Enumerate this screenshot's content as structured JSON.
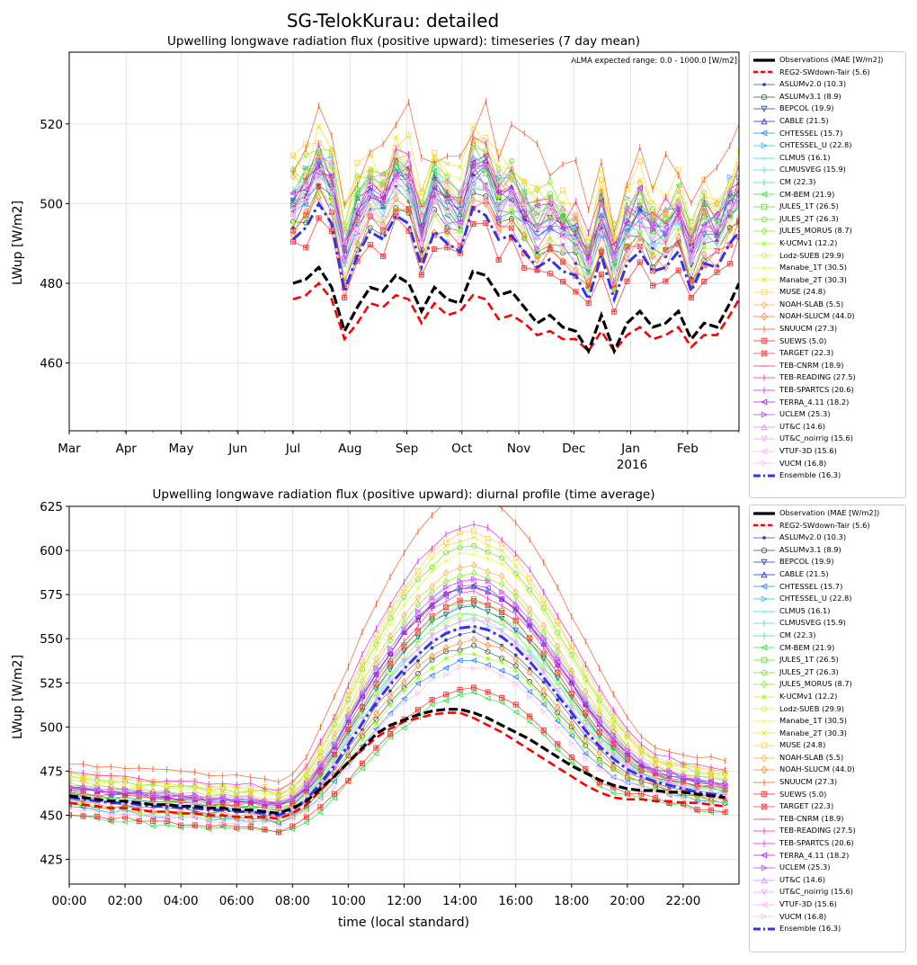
{
  "figure": {
    "title": "SG-TelokKurau: detailed"
  },
  "models": [
    {
      "name": "REG2-SWdown-Tair",
      "mae": 5.6,
      "color": "#ff0000",
      "marker": "",
      "dash": "dashed"
    },
    {
      "name": "ASLUMv2.0",
      "mae": 10.3,
      "color": "#2f4f8f",
      "marker": "dot"
    },
    {
      "name": "ASLUMv3.1",
      "mae": 8.9,
      "color": "#2e5a2e",
      "marker": "circle"
    },
    {
      "name": "BEPCOL",
      "mae": 19.9,
      "color": "#1f3f7f",
      "marker": "tri-down"
    },
    {
      "name": "CABLE",
      "mae": 21.5,
      "color": "#1f1fdf",
      "marker": "tri-up"
    },
    {
      "name": "CHTESSEL",
      "mae": 15.7,
      "color": "#1f7fff",
      "marker": "tri-left"
    },
    {
      "name": "CHTESSEL_U",
      "mae": 22.8,
      "color": "#1fbfff",
      "marker": "tri-right"
    },
    {
      "name": "CLMU5",
      "mae": 16.1,
      "color": "#1fdfdf",
      "marker": "hline"
    },
    {
      "name": "CLMUSVEG",
      "mae": 15.9,
      "color": "#3fdfbf",
      "marker": "vline"
    },
    {
      "name": "CM",
      "mae": 22.3,
      "color": "#3fdf7f",
      "marker": "vline"
    },
    {
      "name": "CM-BEM",
      "mae": 21.9,
      "color": "#2fdf3f",
      "marker": "tri-left"
    },
    {
      "name": "JULES_1T",
      "mae": 26.5,
      "color": "#4fdf1f",
      "marker": "square"
    },
    {
      "name": "JULES_2T",
      "mae": 26.3,
      "color": "#6fdf1f",
      "marker": "circle"
    },
    {
      "name": "JULES_MORUS",
      "mae": 8.7,
      "color": "#7fef1f",
      "marker": "diamond"
    },
    {
      "name": "K-UCMv1",
      "mae": 12.2,
      "color": "#9fff1f",
      "marker": "star"
    },
    {
      "name": "Lodz-SUEB",
      "mae": 29.9,
      "color": "#bfff3f",
      "marker": "circle"
    },
    {
      "name": "Manabe_1T",
      "mae": 30.5,
      "color": "#dfff1f",
      "marker": "plus"
    },
    {
      "name": "Manabe_2T",
      "mae": 30.3,
      "color": "#efdf1f",
      "marker": "x"
    },
    {
      "name": "MUSE",
      "mae": 24.8,
      "color": "#ffcf3f",
      "marker": "square"
    },
    {
      "name": "NOAH-SLAB",
      "mae": 5.5,
      "color": "#ffaf3f",
      "marker": "diamond"
    },
    {
      "name": "NOAH-SLUCM",
      "mae": 44.0,
      "color": "#ff7f1f",
      "marker": "diamond"
    },
    {
      "name": "SNUUCM",
      "mae": 27.3,
      "color": "#ff4f1f",
      "marker": "vline"
    },
    {
      "name": "SUEWS",
      "mae": 5.0,
      "color": "#ff1f1f",
      "marker": "plus-box"
    },
    {
      "name": "TARGET",
      "mae": 22.3,
      "color": "#ff3f3f",
      "marker": "x-box"
    },
    {
      "name": "TEB-CNRM",
      "mae": 18.9,
      "color": "#ff1f7f",
      "marker": "hline"
    },
    {
      "name": "TEB-READING",
      "mae": 27.5,
      "color": "#ef1fcf",
      "marker": "vline"
    },
    {
      "name": "TEB-SPARTCS",
      "mae": 20.6,
      "color": "#df1fef",
      "marker": "vline"
    },
    {
      "name": "TERRA_4.11",
      "mae": 18.2,
      "color": "#9f1fdf",
      "marker": "tri-left"
    },
    {
      "name": "UCLEM",
      "mae": 25.3,
      "color": "#bf3fff",
      "marker": "tri-right"
    },
    {
      "name": "UT&C",
      "mae": 14.6,
      "color": "#df7fff",
      "marker": "tri-up"
    },
    {
      "name": "UT&C_noirrig",
      "mae": 15.6,
      "color": "#ef9fff",
      "marker": "tri-down"
    },
    {
      "name": "VTUF-3D",
      "mae": 15.6,
      "color": "#ffafff",
      "marker": "tri-left"
    },
    {
      "name": "VUCM",
      "mae": 16.8,
      "color": "#ffbfef",
      "marker": "tri-right"
    }
  ],
  "chart_data": [
    {
      "type": "line",
      "title": "Upwelling longwave radiation flux (positive upward): timeseries (7 day mean)",
      "xlabel": "",
      "ylabel": "LWup [W/m2]",
      "annotation": "ALMA expected range: 0.0 - 1000.0 [W/m2]",
      "x_ticks": [
        "Mar",
        "Apr",
        "May",
        "Jun",
        "Jul",
        "Aug",
        "Sep",
        "Oct",
        "Nov",
        "Dec",
        "Jan",
        "Feb"
      ],
      "x_year_label": "2016",
      "x_range": [
        0,
        365
      ],
      "y_ticks": [
        460,
        480,
        500,
        520
      ],
      "ylim": [
        443,
        538
      ],
      "grid": true,
      "legend_placement": "outside right",
      "legend_first": "Observations (MAE [W/m2])",
      "series_x_days": [
        122,
        129,
        136,
        143,
        150,
        157,
        164,
        171,
        178,
        185,
        192,
        199,
        206,
        213,
        220,
        227,
        234,
        241,
        248,
        255,
        262,
        269,
        276,
        283,
        290,
        297,
        304,
        311,
        318,
        325,
        332,
        339,
        346,
        353,
        360,
        365
      ],
      "observations": [
        480,
        481,
        484,
        479,
        468,
        474,
        479,
        478,
        482,
        480,
        473,
        479,
        476,
        475,
        483,
        482,
        477,
        478,
        474,
        470,
        472,
        469,
        468,
        463,
        472,
        463,
        470,
        473,
        469,
        470,
        473,
        466,
        470,
        469,
        475,
        480
      ],
      "reg2": [
        476,
        477,
        480,
        476,
        466,
        470,
        475,
        474,
        477,
        476,
        470,
        475,
        472,
        473,
        477,
        476,
        471,
        472,
        470,
        467,
        468,
        466,
        466,
        463,
        468,
        463,
        467,
        469,
        466,
        467,
        469,
        464,
        467,
        467,
        472,
        476
      ],
      "ensemble": [
        491,
        494,
        500,
        495,
        478,
        487,
        493,
        491,
        497,
        495,
        484,
        493,
        490,
        488,
        499,
        497,
        491,
        492,
        488,
        484,
        486,
        483,
        482,
        476,
        487,
        476,
        485,
        488,
        483,
        484,
        488,
        478,
        485,
        484,
        490,
        493
      ],
      "model_offsets": [
        0.6,
        0.3,
        1.0,
        1.1,
        0.9,
        1.3,
        0.8,
        0.8,
        1.3,
        1.3,
        1.1,
        1.5,
        1.6,
        0.4,
        0.7,
        1.7,
        1.7,
        1.8,
        1.4,
        0.2,
        2.6,
        -0.3,
        0.2,
        1.1,
        1.0,
        1.5,
        1.2,
        0.9,
        1.4,
        0.8,
        0.9,
        0.5,
        -0.8
      ]
    },
    {
      "type": "line",
      "title": "Upwelling longwave radiation flux (positive upward): diurnal profile (time average)",
      "xlabel": "time (local standard)",
      "ylabel": "LWup [W/m2]",
      "x_ticks": [
        "00:00",
        "02:00",
        "04:00",
        "06:00",
        "08:00",
        "10:00",
        "12:00",
        "14:00",
        "16:00",
        "18:00",
        "20:00",
        "22:00"
      ],
      "x_range": [
        0,
        24
      ],
      "y_ticks": [
        425,
        450,
        475,
        500,
        525,
        550,
        575,
        600,
        625
      ],
      "ylim": [
        411,
        625
      ],
      "grid": true,
      "legend_placement": "outside right",
      "legend_first": "Observation (MAE [W/m2])",
      "series_x_hours": [
        0,
        0.5,
        1,
        1.5,
        2,
        2.5,
        3,
        3.5,
        4,
        4.5,
        5,
        5.5,
        6,
        6.5,
        7,
        7.5,
        8,
        8.5,
        9,
        9.5,
        10,
        10.5,
        11,
        11.5,
        12,
        12.5,
        13,
        13.5,
        14,
        14.5,
        15,
        15.5,
        16,
        16.5,
        17,
        17.5,
        18,
        18.5,
        19,
        19.5,
        20,
        20.5,
        21,
        21.5,
        22,
        22.5,
        23,
        23.5
      ],
      "observations": [
        461,
        460,
        459,
        458,
        458,
        457,
        456,
        456,
        455,
        455,
        454,
        454,
        453,
        453,
        452,
        451,
        454,
        458,
        465,
        472,
        480,
        488,
        496,
        501,
        504,
        507,
        509,
        510,
        510,
        508,
        505,
        501,
        497,
        493,
        488,
        483,
        478,
        474,
        470,
        467,
        465,
        464,
        464,
        463,
        463,
        462,
        461,
        460
      ],
      "reg2": [
        457,
        456,
        455,
        454,
        454,
        453,
        452,
        452,
        451,
        451,
        450,
        450,
        449,
        449,
        449,
        448,
        451,
        456,
        464,
        472,
        480,
        487,
        494,
        499,
        503,
        505,
        507,
        508,
        508,
        505,
        501,
        497,
        492,
        487,
        482,
        477,
        472,
        467,
        463,
        460,
        459,
        459,
        458,
        458,
        457,
        457,
        456,
        455
      ],
      "ensemble": [
        460,
        459,
        458,
        457,
        457,
        456,
        455,
        455,
        454,
        454,
        453,
        453,
        452,
        452,
        451,
        450,
        453,
        459,
        468,
        478,
        490,
        502,
        514,
        524,
        533,
        541,
        548,
        553,
        556,
        557,
        555,
        551,
        545,
        537,
        528,
        518,
        508,
        498,
        489,
        482,
        476,
        472,
        469,
        467,
        465,
        463,
        462,
        461
      ],
      "model_offsets": [
        -0.1,
        -0.3,
        0.3,
        0.6,
        -0.5,
        0.6,
        0.2,
        0.1,
        0.3,
        -1.0,
        0.4,
        1.2,
        0.8,
        -0.4,
        0.2,
        1.1,
        1.3,
        1.4,
        0.9,
        -0.2,
        2.0,
        -0.9,
        0.4,
        0.6,
        0.5,
        1.5,
        0.6,
        0.7,
        0.7,
        0.1,
        0.0,
        -0.6,
        0.2
      ]
    }
  ],
  "legend_labels": {
    "ensemble": "Ensemble (16.3)"
  }
}
